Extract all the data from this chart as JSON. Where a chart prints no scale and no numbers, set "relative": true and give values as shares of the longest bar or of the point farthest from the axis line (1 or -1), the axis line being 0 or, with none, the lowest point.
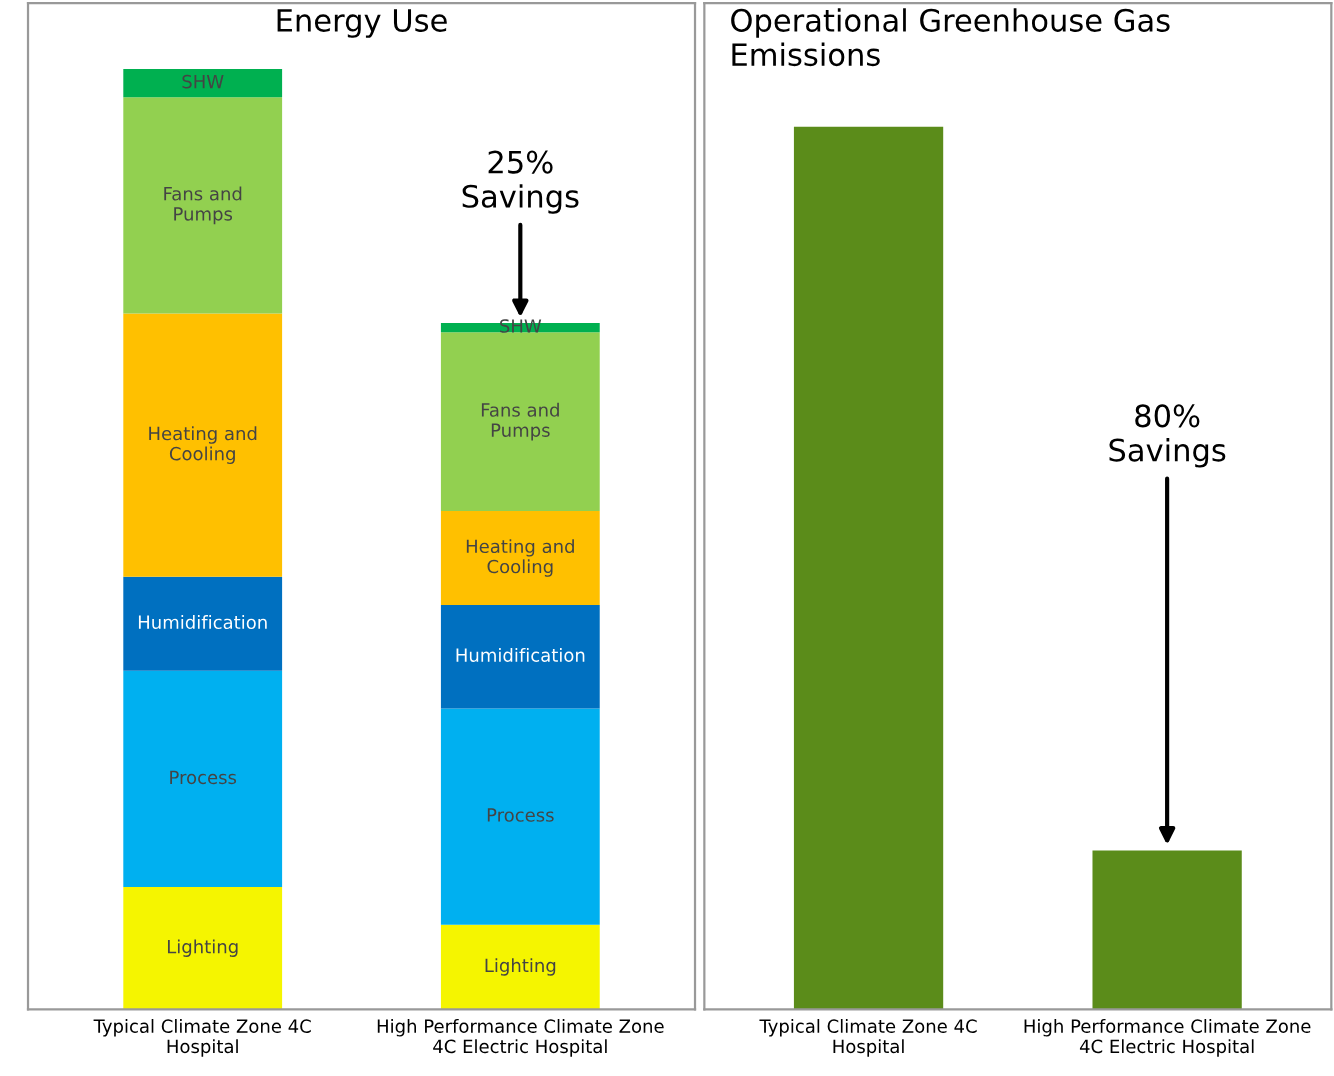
{
  "chart_data": [
    {
      "type": "bar",
      "title": "Energy Use",
      "relative": true,
      "stacked": true,
      "data_labels": false,
      "categories": [
        "Typical Climate Zone 4C\nHospital",
        "High Performance Climate Zone\n4C Electric Hospital"
      ],
      "series": [
        {
          "name": "Lighting",
          "color": "#f5f500",
          "values": [
            0.13,
            0.09
          ]
        },
        {
          "name": "Process",
          "color": "#00b0f0",
          "values": [
            0.23,
            0.23
          ]
        },
        {
          "name": "Humidification",
          "color": "#0070c0",
          "values": [
            0.1,
            0.11
          ]
        },
        {
          "name": "Heating and\nCooling",
          "color": "#ffc000",
          "values": [
            0.28,
            0.1
          ]
        },
        {
          "name": "Fans and\nPumps",
          "color": "#92d050",
          "values": [
            0.23,
            0.19
          ]
        },
        {
          "name": "SHW",
          "color": "#00b050",
          "values": [
            0.03,
            0.01
          ]
        }
      ],
      "annotations": [
        {
          "text": "25%\nSavings",
          "x": "High Performance Climate Zone\n4C Electric Hospital",
          "y": 0.73
        }
      ]
    },
    {
      "type": "bar",
      "title": "Operational Greenhouse Gas\nEmissions",
      "relative": true,
      "categories": [
        "Typical Climate Zone 4C\nHospital",
        "High Performance Climate Zone\n4C Electric Hospital"
      ],
      "series": [
        {
          "color": "#5b8c1a",
          "values": [
            1.0,
            0.18
          ]
        }
      ],
      "annotations": [
        {
          "text": "80%\nSavings",
          "x": "High Performance Climate Zone\n4C Electric Hospital",
          "y": 0.18
        }
      ]
    }
  ]
}
